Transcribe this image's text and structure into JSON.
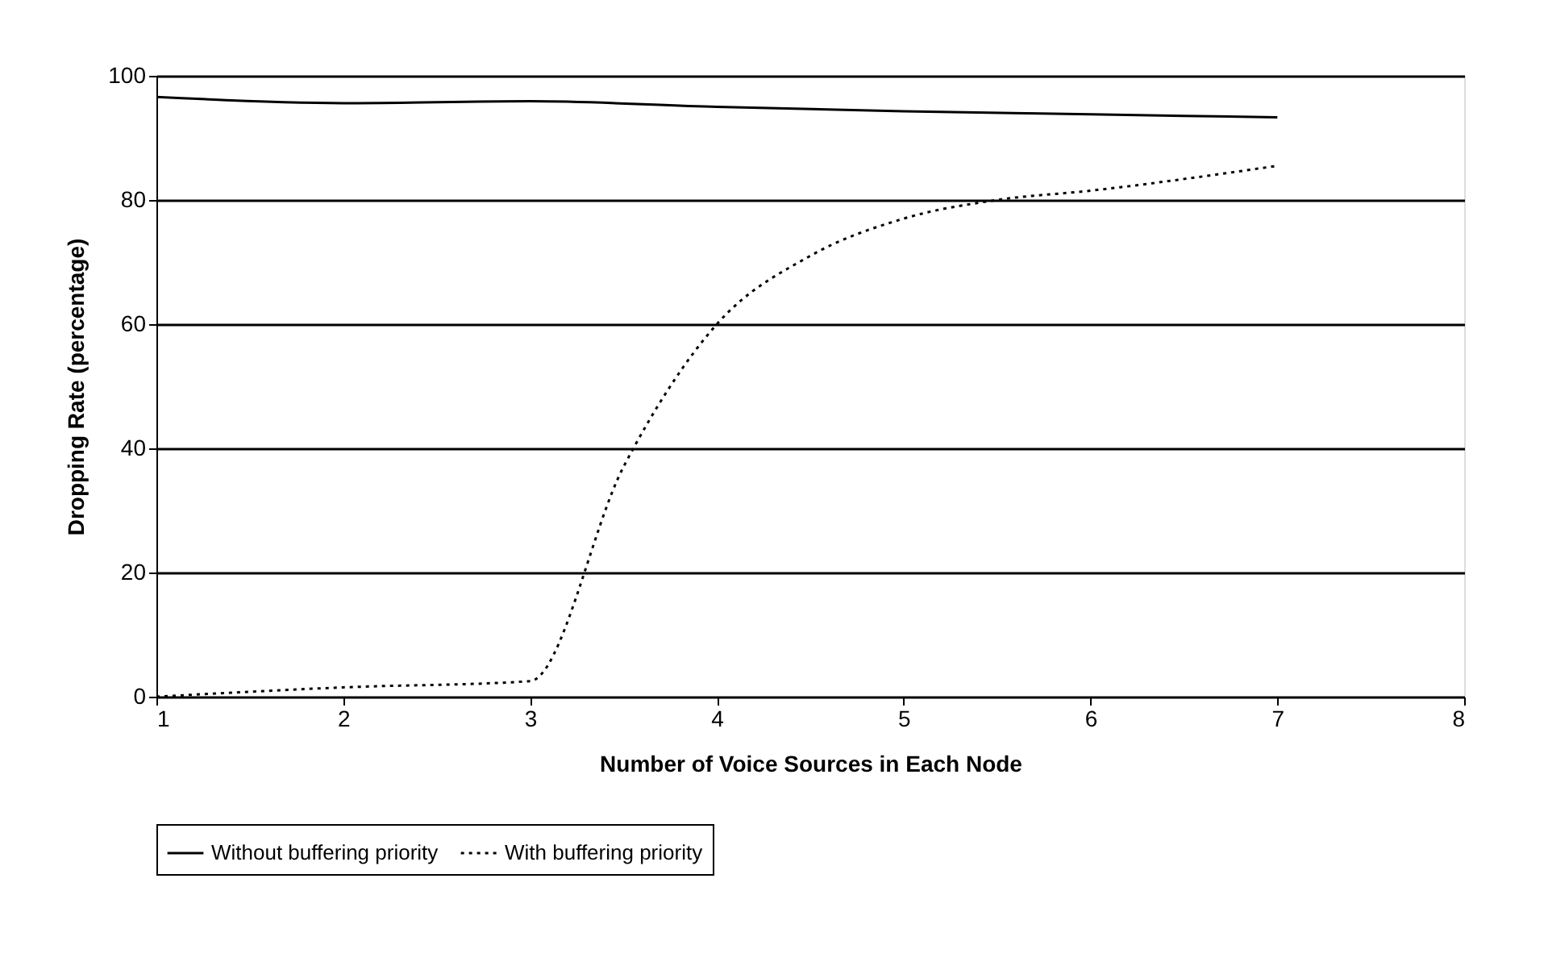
{
  "chart_data": {
    "type": "line",
    "xlabel": "Number of Voice Sources in Each Node",
    "ylabel": "Dropping Rate (percentage)",
    "xlim": [
      1,
      8
    ],
    "xticks": [
      1,
      2,
      3,
      4,
      5,
      6,
      7,
      8
    ],
    "ylim": [
      0,
      100
    ],
    "yticks": [
      0,
      20,
      40,
      60,
      80,
      100
    ],
    "grid": "y",
    "legend": "bottom",
    "marker": "none",
    "series": [
      {
        "name": "Without buffering priority",
        "color": "#000000",
        "line_style": "solid",
        "x": [
          1,
          2,
          3,
          4,
          5,
          6,
          7
        ],
        "values": [
          96.6,
          95.6,
          95.9,
          95.0,
          94.3,
          93.8,
          93.3
        ]
      },
      {
        "name": "With buffering priority",
        "color": "#000000",
        "line_style": "dotted",
        "x": [
          1,
          2,
          3,
          3.5,
          4,
          4.5,
          5,
          5.5,
          6,
          7
        ],
        "values": [
          0,
          1.5,
          2.5,
          37,
          60,
          71,
          77,
          80,
          81.5,
          85.5
        ]
      }
    ]
  }
}
